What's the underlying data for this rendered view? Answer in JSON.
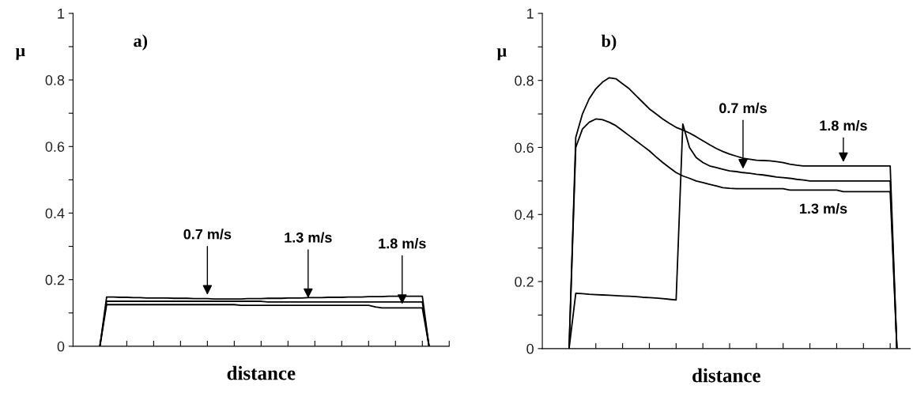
{
  "chart_data": [
    {
      "type": "line",
      "title": "a)",
      "xlabel": "distance",
      "ylabel": "μ",
      "ylim": [
        0,
        1
      ],
      "tick_labels": "y",
      "grid": false,
      "legend": false,
      "categories": [
        null,
        null,
        null,
        null,
        null,
        null,
        null,
        null,
        null,
        null,
        null,
        null,
        null,
        null,
        null,
        null,
        null,
        null,
        null,
        null,
        null,
        null,
        null,
        null,
        null,
        null,
        null,
        null,
        null,
        null,
        null,
        null,
        null,
        null,
        null,
        null,
        null,
        null,
        null,
        null,
        null,
        null,
        null,
        null,
        null,
        null,
        null,
        null,
        null,
        null,
        null,
        null,
        null,
        null,
        null,
        null,
        null
      ],
      "yticks": [
        0,
        {
          "value": 0.1,
          "label": null
        },
        0.2,
        {
          "value": 0.3,
          "label": null
        },
        0.4,
        {
          "value": 0.5,
          "label": null
        },
        0.6,
        {
          "value": 0.7,
          "label": null
        },
        0.8,
        {
          "value": 0.9,
          "label": null
        },
        1
      ],
      "series": [
        {
          "name": "0.7 m/s",
          "color": "#000000",
          "values": [
            null,
            null,
            null,
            null,
            0,
            0.148,
            0.148,
            0.147,
            0.147,
            0.146,
            0.146,
            0.145,
            0.145,
            0.145,
            0.145,
            0.144,
            0.144,
            0.144,
            0.143,
            0.143,
            0.143,
            0.142,
            0.142,
            0.142,
            0.142,
            0.142,
            0.143,
            0.143,
            0.143,
            0.144,
            0.144,
            0.144,
            0.145,
            0.145,
            0.145,
            0.146,
            0.146,
            0.146,
            0.147,
            0.147,
            0.147,
            0.148,
            0.148,
            0.148,
            0.149,
            0.149,
            0.149,
            0.15,
            0.15,
            0.15,
            0.15,
            0.15,
            0.15,
            0,
            null,
            null,
            null
          ]
        },
        {
          "name": "1.3 m/s",
          "color": "#000000",
          "values": [
            null,
            null,
            null,
            null,
            0,
            0.135,
            0.135,
            0.135,
            0.135,
            0.135,
            0.135,
            0.135,
            0.135,
            0.135,
            0.135,
            0.135,
            0.135,
            0.135,
            0.135,
            0.135,
            0.135,
            0.135,
            0.135,
            0.135,
            0.135,
            0.135,
            0.135,
            0.135,
            0.135,
            0.133,
            0.133,
            0.133,
            0.133,
            0.133,
            0.133,
            0.133,
            0.133,
            0.133,
            0.133,
            0.133,
            0.133,
            0.133,
            0.133,
            0.133,
            0.133,
            0.133,
            0.133,
            0.133,
            0.133,
            0.133,
            0.133,
            0.133,
            0.133,
            0,
            null,
            null,
            null
          ]
        },
        {
          "name": "1.8 m/s",
          "color": "#000000",
          "values": [
            null,
            null,
            null,
            null,
            0,
            0.125,
            0.125,
            0.125,
            0.125,
            0.125,
            0.125,
            0.125,
            0.125,
            0.125,
            0.125,
            0.125,
            0.125,
            0.125,
            0.125,
            0.125,
            0.125,
            0.125,
            0.125,
            0.125,
            0.125,
            0.123,
            0.123,
            0.123,
            0.123,
            0.123,
            0.123,
            0.123,
            0.123,
            0.123,
            0.123,
            0.123,
            0.123,
            0.123,
            0.123,
            0.123,
            0.123,
            0.123,
            0.123,
            0.123,
            0.123,
            0.118,
            0.115,
            0.115,
            0.115,
            0.115,
            0.115,
            0.115,
            0.115,
            0,
            null,
            null,
            null
          ]
        }
      ]
    },
    {
      "type": "line",
      "title": "b)",
      "xlabel": "distance",
      "ylabel": "μ",
      "ylim": [
        0,
        1
      ],
      "tick_labels": "y",
      "grid": false,
      "legend": false,
      "categories": [
        null,
        null,
        null,
        null,
        null,
        null,
        null,
        null,
        null,
        null,
        null,
        null,
        null,
        null,
        null,
        null,
        null,
        null,
        null,
        null,
        null,
        null,
        null,
        null,
        null,
        null,
        null,
        null,
        null,
        null,
        null,
        null,
        null,
        null,
        null,
        null,
        null,
        null,
        null,
        null,
        null,
        null,
        null,
        null,
        null,
        null,
        null,
        null,
        null,
        null,
        null,
        null,
        null,
        null,
        null,
        null
      ],
      "yticks": [
        0,
        {
          "value": 0.1,
          "label": null
        },
        0.2,
        {
          "value": 0.3,
          "label": null
        },
        0.4,
        {
          "value": 0.5,
          "label": null
        },
        0.6,
        {
          "value": 0.7,
          "label": null
        },
        0.8,
        {
          "value": 0.9,
          "label": null
        },
        1
      ],
      "series": [
        {
          "name": "0.7 m/s",
          "color": "#000000",
          "values": [
            null,
            null,
            null,
            null,
            0,
            0.165,
            0.164,
            0.162,
            0.161,
            0.16,
            0.159,
            0.158,
            0.157,
            0.156,
            0.155,
            0.153,
            0.152,
            0.151,
            0.149,
            0.147,
            0.145,
            0.67,
            0.6,
            0.57,
            0.555,
            0.545,
            0.54,
            0.535,
            0.53,
            0.528,
            0.525,
            0.523,
            0.52,
            0.518,
            0.515,
            0.512,
            0.51,
            0.508,
            0.505,
            0.503,
            0.5,
            0.5,
            0.5,
            0.5,
            0.5,
            0.5,
            0.5,
            0.5,
            0.5,
            0.5,
            0.5,
            0.5,
            0.5,
            0,
            null,
            null
          ]
        },
        {
          "name": "1.3 m/s",
          "color": "#000000",
          "values": [
            null,
            null,
            null,
            null,
            0,
            0.6,
            0.655,
            0.675,
            0.685,
            0.683,
            0.675,
            0.665,
            0.65,
            0.635,
            0.62,
            0.605,
            0.59,
            0.572,
            0.555,
            0.54,
            0.525,
            0.515,
            0.508,
            0.5,
            0.495,
            0.49,
            0.485,
            0.48,
            0.478,
            0.477,
            0.477,
            0.477,
            0.477,
            0.477,
            0.477,
            0.477,
            0.477,
            0.473,
            0.473,
            0.473,
            0.473,
            0.473,
            0.473,
            0.473,
            0.473,
            0.468,
            0.468,
            0.468,
            0.468,
            0.468,
            0.468,
            0.468,
            0.468,
            0,
            null,
            null
          ]
        },
        {
          "name": "1.8 m/s",
          "color": "#000000",
          "values": [
            null,
            null,
            null,
            null,
            0,
            0.63,
            0.7,
            0.745,
            0.775,
            0.795,
            0.808,
            0.805,
            0.79,
            0.775,
            0.755,
            0.735,
            0.715,
            0.7,
            0.685,
            0.672,
            0.66,
            0.652,
            0.643,
            0.632,
            0.62,
            0.608,
            0.597,
            0.588,
            0.58,
            0.574,
            0.568,
            0.565,
            0.562,
            0.561,
            0.56,
            0.558,
            0.555,
            0.55,
            0.547,
            0.545,
            0.545,
            0.545,
            0.545,
            0.545,
            0.545,
            0.545,
            0.545,
            0.545,
            0.545,
            0.545,
            0.545,
            0.545,
            0.545,
            0,
            null,
            null
          ]
        }
      ]
    }
  ]
}
